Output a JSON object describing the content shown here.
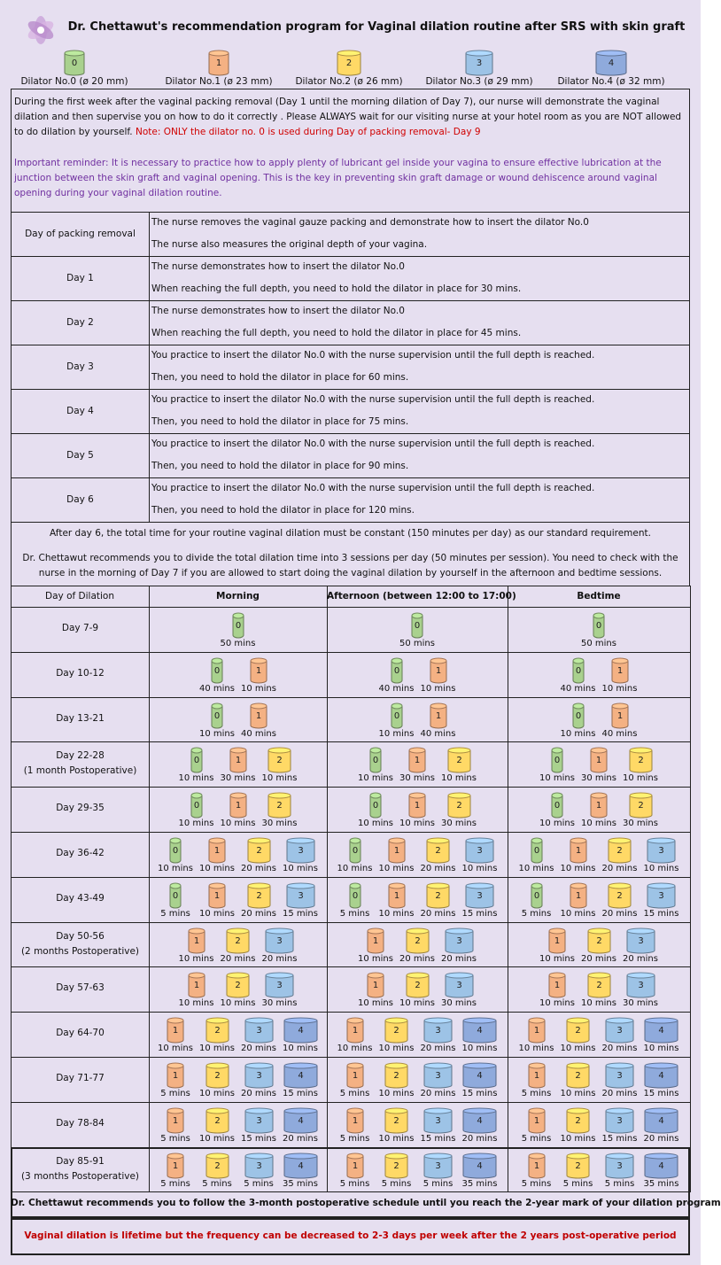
{
  "header": {
    "title": "Dr. Chettawut's recommendation program for Vaginal dilation routine after SRS with skin graft"
  },
  "dilators": [
    {
      "number": "0",
      "label": "Dilator No.0 (ø 20 mm)",
      "color": "#a9d18e"
    },
    {
      "number": "1",
      "label": "Dilator No.1 (ø 23 mm)",
      "color": "#f4b183"
    },
    {
      "number": "2",
      "label": "Dilator No.2 (ø 26 mm)",
      "color": "#ffd966"
    },
    {
      "number": "3",
      "label": "Dilator No.3 (ø 29 mm)",
      "color": "#9dc3e6"
    },
    {
      "number": "4",
      "label": "Dilator No.4 (ø 32 mm)",
      "color": "#8faadc"
    }
  ],
  "intro": {
    "text": "During the first week after the vaginal packing removal (Day 1 until the morning dilation of Day 7), our nurse will demonstrate the vaginal dilation and then supervise you on how to do it correctly . Please ALWAYS wait for our visiting nurse at your hotel room as you are NOT allowed to do dilation by yourself. ",
    "note": "Note: ONLY the dilator no. 0 is used during Day of packing removal- Day 9",
    "reminder": "Important reminder: It is necessary to practice how to apply plenty of lubricant gel inside your vagina to ensure effective lubrication at the junction between the skin graft and vaginal opening. This is the key in preventing skin graft damage or wound dehiscence around vaginal opening during your vaginal dilation routine."
  },
  "first_week": [
    {
      "day": "Day of packing removal",
      "lines": [
        "The nurse removes the vaginal gauze packing  and demonstrate how to insert the dilator No.0",
        "The nurse also measures the original depth of your vagina."
      ]
    },
    {
      "day": "Day 1",
      "lines": [
        "The nurse demonstrates how to insert the dilator No.0",
        "When reaching the full depth, you need to hold the dilator in place for 30 mins."
      ]
    },
    {
      "day": "Day 2",
      "lines": [
        "The nurse demonstrates how to insert the dilator No.0",
        "When reaching the full depth, you need to hold the dilator in place for 45 mins."
      ]
    },
    {
      "day": "Day 3",
      "lines": [
        "You practice to insert the dilator No.0 with the nurse supervision until the full depth is reached.",
        "Then, you need to hold the dilator in place for 60 mins."
      ]
    },
    {
      "day": "Day 4",
      "lines": [
        "You practice to insert the dilator No.0 with the nurse supervision until the full depth is reached.",
        "Then, you need to hold the dilator in place for 75 mins."
      ]
    },
    {
      "day": "Day 5",
      "lines": [
        "You practice to insert the dilator No.0 with the nurse supervision until the full depth is reached.",
        "Then, you need to hold the dilator in place for 90 mins."
      ]
    },
    {
      "day": "Day 6",
      "lines": [
        "You practice to insert the dilator No.0 with the nurse supervision until the full depth is reached.",
        "Then, you need to hold the dilator in place for 120 mins."
      ]
    }
  ],
  "after_day6": [
    "After day 6, the total time for your routine vaginal dilation must be constant (150 minutes per day) as our standard requirement.",
    "Dr. Chettawut recommends you to divide the total dilation time into 3 sessions per day (50 minutes per session). You need to check with the nurse in the morning of Day 7 if you are allowed to start doing the vaginal dilation by yourself in the afternoon and bedtime sessions."
  ],
  "schedule": {
    "columns": [
      "Day of Dilation",
      "Morning",
      "Afternoon (between 12:00 to 17:00)",
      "Bedtime"
    ],
    "rows": [
      {
        "day": "Day 7-9",
        "items": [
          {
            "dilator": "0",
            "time": "50 mins"
          }
        ]
      },
      {
        "day": "Day 10-12",
        "items": [
          {
            "dilator": "0",
            "time": "40 mins"
          },
          {
            "dilator": "1",
            "time": "10 mins"
          }
        ]
      },
      {
        "day": "Day 13-21",
        "items": [
          {
            "dilator": "0",
            "time": "10 mins"
          },
          {
            "dilator": "1",
            "time": "40 mins"
          }
        ]
      },
      {
        "day": "Day 22-28",
        "note": "(1 month Postoperative)",
        "items": [
          {
            "dilator": "0",
            "time": "10 mins"
          },
          {
            "dilator": "1",
            "time": "30 mins"
          },
          {
            "dilator": "2",
            "time": "10 mins"
          }
        ]
      },
      {
        "day": "Day 29-35",
        "items": [
          {
            "dilator": "0",
            "time": "10 mins"
          },
          {
            "dilator": "1",
            "time": "10 mins"
          },
          {
            "dilator": "2",
            "time": "30 mins"
          }
        ]
      },
      {
        "day": "Day 36-42",
        "items": [
          {
            "dilator": "0",
            "time": "10 mins"
          },
          {
            "dilator": "1",
            "time": "10 mins"
          },
          {
            "dilator": "2",
            "time": "20 mins"
          },
          {
            "dilator": "3",
            "time": "10 mins"
          }
        ]
      },
      {
        "day": "Day 43-49",
        "items": [
          {
            "dilator": "0",
            "time": "5 mins"
          },
          {
            "dilator": "1",
            "time": "10 mins"
          },
          {
            "dilator": "2",
            "time": "20 mins"
          },
          {
            "dilator": "3",
            "time": "15 mins"
          }
        ]
      },
      {
        "day": "Day 50-56",
        "note": "(2 months Postoperative)",
        "items": [
          {
            "dilator": "1",
            "time": "10 mins"
          },
          {
            "dilator": "2",
            "time": "20 mins"
          },
          {
            "dilator": "3",
            "time": "20 mins"
          }
        ]
      },
      {
        "day": "Day 57-63",
        "items": [
          {
            "dilator": "1",
            "time": "10 mins"
          },
          {
            "dilator": "2",
            "time": "10 mins"
          },
          {
            "dilator": "3",
            "time": "30 mins"
          }
        ]
      },
      {
        "day": "Day 64-70",
        "items": [
          {
            "dilator": "1",
            "time": "10 mins"
          },
          {
            "dilator": "2",
            "time": "10 mins"
          },
          {
            "dilator": "3",
            "time": "20 mins"
          },
          {
            "dilator": "4",
            "time": "10 mins"
          }
        ]
      },
      {
        "day": "Day 71-77",
        "items": [
          {
            "dilator": "1",
            "time": "5 mins"
          },
          {
            "dilator": "2",
            "time": "10 mins"
          },
          {
            "dilator": "3",
            "time": "20 mins"
          },
          {
            "dilator": "4",
            "time": "15 mins"
          }
        ]
      },
      {
        "day": "Day 78-84",
        "items": [
          {
            "dilator": "1",
            "time": "5 mins"
          },
          {
            "dilator": "2",
            "time": "10 mins"
          },
          {
            "dilator": "3",
            "time": "15 mins"
          },
          {
            "dilator": "4",
            "time": "20 mins"
          }
        ]
      },
      {
        "day": "Day 85-91",
        "note": "(3 months Postoperative)",
        "items": [
          {
            "dilator": "1",
            "time": "5 mins"
          },
          {
            "dilator": "2",
            "time": "5 mins"
          },
          {
            "dilator": "3",
            "time": "5 mins"
          },
          {
            "dilator": "4",
            "time": "35 mins"
          }
        ]
      }
    ]
  },
  "footer": {
    "schedule_note": "Dr. Chettawut recommends you to follow the 3-month postoperative schedule until you reach the 2-year mark of your dilation program",
    "lifetime_note": "Vaginal dilation is lifetime but the frequency can be decreased to 2-3 days per week after the 2 years post-operative period"
  }
}
